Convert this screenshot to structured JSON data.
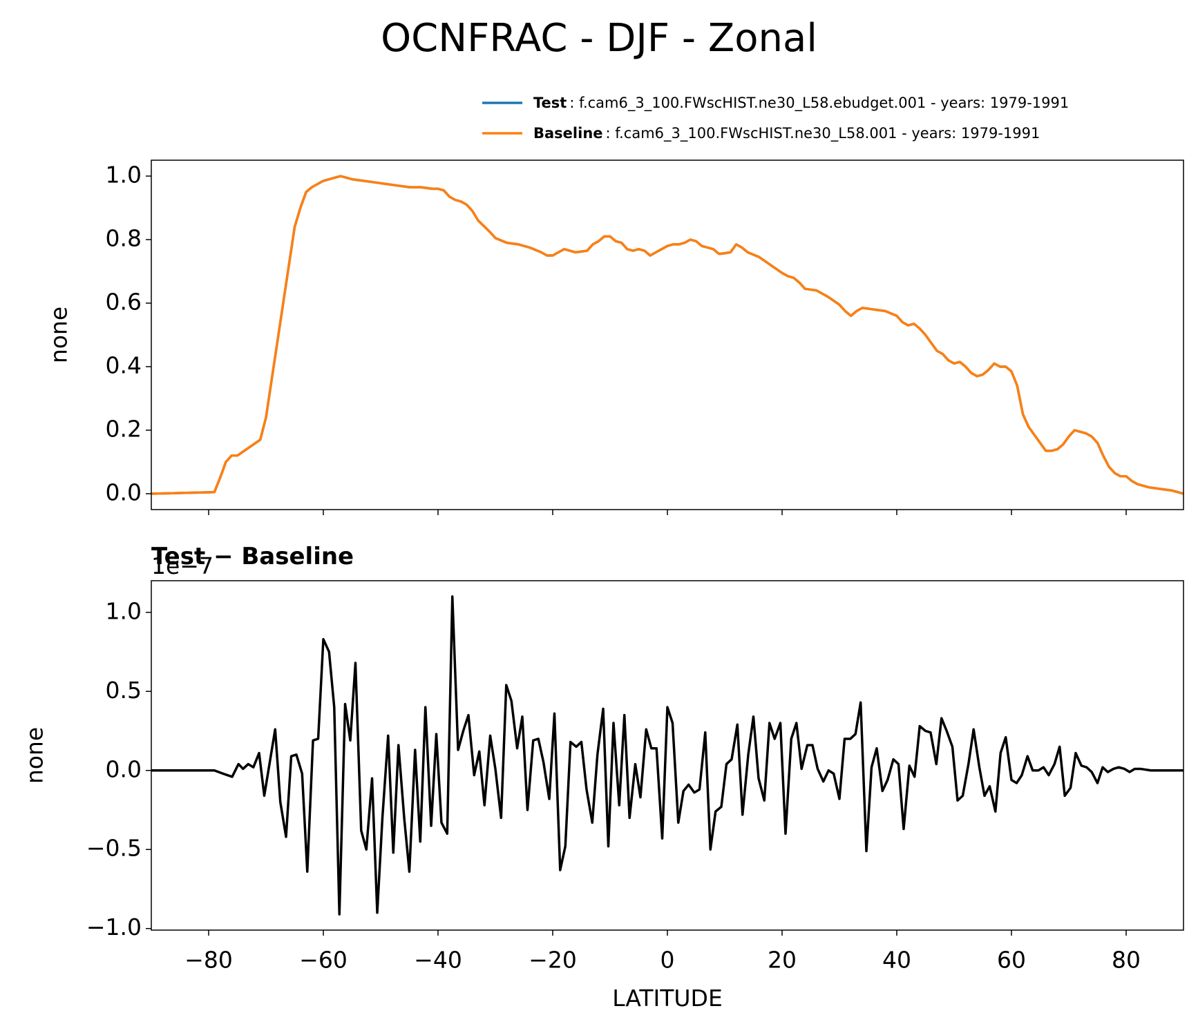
{
  "title": "OCNFRAC - DJF - Zonal",
  "chart_data": [
    {
      "type": "line",
      "ylabel": "none",
      "legend": "upper right",
      "grid": false,
      "show_xtick_labels": false,
      "xlim": [
        -90,
        90
      ],
      "ylim": [
        -0.05,
        1.05
      ],
      "xticks": [
        {
          "value": -80,
          "label": "−80"
        },
        {
          "value": -60,
          "label": "−60"
        },
        {
          "value": -40,
          "label": "−40"
        },
        {
          "value": -20,
          "label": "−20"
        },
        0,
        20,
        40,
        60,
        80
      ],
      "yticks": [
        {
          "value": 0,
          "label": "0.0"
        },
        0.2,
        0.4,
        0.6,
        0.8,
        {
          "value": 1,
          "label": "1.0"
        }
      ],
      "x": [
        -90,
        -79,
        -78,
        -77,
        -76,
        -75,
        -73,
        -71,
        -70,
        -69,
        -68,
        -67,
        -66,
        -65,
        -64,
        -63,
        -62,
        -60,
        -58,
        -57,
        -55,
        -53,
        -51,
        -49,
        -47,
        -45,
        -43,
        -41,
        -40,
        -39,
        -38,
        -37,
        -36,
        -35,
        -34,
        -33,
        -31,
        -30,
        -28,
        -26,
        -24,
        -22,
        -21,
        -20,
        -19,
        -18,
        -16,
        -14,
        -13,
        -12,
        -11,
        -10,
        -9,
        -8,
        -7,
        -6,
        -5,
        -4,
        -3,
        -2,
        -1,
        0,
        1,
        2,
        3,
        4,
        5,
        6,
        7,
        8,
        9,
        10,
        11,
        12,
        13,
        14,
        16,
        18,
        20,
        21,
        22,
        23,
        24,
        26,
        28,
        30,
        31,
        32,
        33,
        34,
        36,
        38,
        40,
        41,
        42,
        43,
        44,
        45,
        46,
        47,
        48,
        49,
        50,
        51,
        52,
        53,
        54,
        55,
        56,
        57,
        58,
        59,
        60,
        61,
        62,
        63,
        64,
        65,
        66,
        67,
        68,
        69,
        70,
        71,
        72,
        73,
        74,
        75,
        76,
        77,
        78,
        79,
        80,
        81,
        82,
        84,
        86,
        88,
        90
      ],
      "series": [
        {
          "name": "Test",
          "description": ": f.cam6_3_100.FWscHIST.ne30_L58.ebudget.001 - years: 1979-1991",
          "color": "#1f77b4",
          "values": [
            0,
            0.005,
            0.05,
            0.1,
            0.12,
            0.12,
            0.145,
            0.17,
            0.24,
            0.36,
            0.48,
            0.6,
            0.72,
            0.84,
            0.9,
            0.95,
            0.965,
            0.985,
            0.995,
            1.0,
            0.99,
            0.985,
            0.98,
            0.975,
            0.97,
            0.965,
            0.965,
            0.96,
            0.96,
            0.955,
            0.935,
            0.925,
            0.92,
            0.91,
            0.89,
            0.86,
            0.825,
            0.805,
            0.79,
            0.785,
            0.775,
            0.76,
            0.75,
            0.75,
            0.76,
            0.77,
            0.76,
            0.765,
            0.785,
            0.795,
            0.81,
            0.81,
            0.795,
            0.79,
            0.77,
            0.765,
            0.77,
            0.765,
            0.75,
            0.76,
            0.77,
            0.78,
            0.785,
            0.785,
            0.79,
            0.8,
            0.795,
            0.78,
            0.775,
            0.77,
            0.755,
            0.757,
            0.76,
            0.785,
            0.775,
            0.76,
            0.745,
            0.72,
            0.695,
            0.685,
            0.68,
            0.665,
            0.645,
            0.64,
            0.62,
            0.595,
            0.575,
            0.56,
            0.575,
            0.585,
            0.58,
            0.575,
            0.56,
            0.54,
            0.53,
            0.535,
            0.52,
            0.5,
            0.475,
            0.45,
            0.44,
            0.42,
            0.41,
            0.415,
            0.4,
            0.38,
            0.37,
            0.375,
            0.39,
            0.41,
            0.4,
            0.4,
            0.385,
            0.34,
            0.25,
            0.21,
            0.185,
            0.16,
            0.135,
            0.135,
            0.14,
            0.155,
            0.18,
            0.2,
            0.195,
            0.19,
            0.18,
            0.16,
            0.12,
            0.085,
            0.065,
            0.055,
            0.055,
            0.04,
            0.03,
            0.02,
            0.015,
            0.01,
            0.0
          ]
        },
        {
          "name": "Baseline",
          "description": ": f.cam6_3_100.FWscHIST.ne30_L58.001 - years: 1979-1991",
          "color": "#ff7f0e",
          "values": [
            0,
            0.005,
            0.05,
            0.1,
            0.12,
            0.12,
            0.145,
            0.17,
            0.24,
            0.36,
            0.48,
            0.6,
            0.72,
            0.84,
            0.9,
            0.95,
            0.965,
            0.985,
            0.995,
            1.0,
            0.99,
            0.985,
            0.98,
            0.975,
            0.97,
            0.965,
            0.965,
            0.96,
            0.96,
            0.955,
            0.935,
            0.925,
            0.92,
            0.91,
            0.89,
            0.86,
            0.825,
            0.805,
            0.79,
            0.785,
            0.775,
            0.76,
            0.75,
            0.75,
            0.76,
            0.77,
            0.76,
            0.765,
            0.785,
            0.795,
            0.81,
            0.81,
            0.795,
            0.79,
            0.77,
            0.765,
            0.77,
            0.765,
            0.75,
            0.76,
            0.77,
            0.78,
            0.785,
            0.785,
            0.79,
            0.8,
            0.795,
            0.78,
            0.775,
            0.77,
            0.755,
            0.757,
            0.76,
            0.785,
            0.775,
            0.76,
            0.745,
            0.72,
            0.695,
            0.685,
            0.68,
            0.665,
            0.645,
            0.64,
            0.62,
            0.595,
            0.575,
            0.56,
            0.575,
            0.585,
            0.58,
            0.575,
            0.56,
            0.54,
            0.53,
            0.535,
            0.52,
            0.5,
            0.475,
            0.45,
            0.44,
            0.42,
            0.41,
            0.415,
            0.4,
            0.38,
            0.37,
            0.375,
            0.39,
            0.41,
            0.4,
            0.4,
            0.385,
            0.34,
            0.25,
            0.21,
            0.185,
            0.16,
            0.135,
            0.135,
            0.14,
            0.155,
            0.18,
            0.2,
            0.195,
            0.19,
            0.18,
            0.16,
            0.12,
            0.085,
            0.065,
            0.055,
            0.055,
            0.04,
            0.03,
            0.02,
            0.015,
            0.01,
            0.0
          ]
        }
      ]
    },
    {
      "type": "line",
      "title": "Test − Baseline",
      "offset_text": "1e−7",
      "ylabel": "none",
      "xlabel": "LATITUDE",
      "grid": false,
      "show_xtick_labels": true,
      "xlim": [
        -90,
        90
      ],
      "ylim": [
        -1.01,
        1.2
      ],
      "xticks": [
        {
          "value": -80,
          "label": "−80"
        },
        {
          "value": -60,
          "label": "−60"
        },
        {
          "value": -40,
          "label": "−40"
        },
        {
          "value": -20,
          "label": "−20"
        },
        0,
        20,
        40,
        60,
        80
      ],
      "yticks": [
        {
          "value": -1,
          "label": "−1.0"
        },
        {
          "value": -0.5,
          "label": "−0.5"
        },
        {
          "value": 0,
          "label": "0.0"
        },
        0.5,
        {
          "value": 1,
          "label": "1.0"
        }
      ],
      "x": [
        -90,
        -79,
        -77.5,
        -75.9,
        -74.8,
        -74,
        -73.1,
        -72.2,
        -71.2,
        -70.3,
        -68.4,
        -67.5,
        -66.5,
        -65.6,
        -64.7,
        -63.7,
        -62.8,
        -61.8,
        -60.9,
        -60,
        -59,
        -58.1,
        -57.2,
        -56.2,
        -55.3,
        -54.4,
        -53.4,
        -52.5,
        -51.5,
        -50.6,
        -49.7,
        -48.7,
        -47.8,
        -46.9,
        -45.9,
        -45,
        -44,
        -43.1,
        -42.2,
        -41.2,
        -40.3,
        -39.4,
        -38.4,
        -37.5,
        -36.5,
        -35.6,
        -34.7,
        -33.7,
        -32.8,
        -31.9,
        -30.9,
        -30,
        -29,
        -28.1,
        -27.2,
        -26.2,
        -25.3,
        -24.4,
        -23.4,
        -22.5,
        -21.6,
        -20.6,
        -19.7,
        -18.7,
        -17.8,
        -16.9,
        -15.9,
        -15,
        -14.1,
        -13.1,
        -12.2,
        -11.2,
        -10.3,
        -9.4,
        -8.4,
        -7.5,
        -6.6,
        -5.6,
        -4.7,
        -3.7,
        -2.8,
        -1.9,
        -0.9,
        0,
        0.9,
        1.9,
        2.8,
        3.7,
        4.7,
        5.6,
        6.6,
        7.5,
        8.4,
        9.4,
        10.3,
        11.2,
        12.2,
        13.1,
        14.1,
        15,
        15.9,
        16.9,
        17.8,
        18.7,
        19.7,
        20.6,
        21.6,
        22.5,
        23.4,
        24.4,
        25.3,
        26.2,
        27.2,
        28.1,
        29,
        30,
        30.9,
        31.9,
        32.8,
        33.7,
        34.7,
        35.6,
        36.5,
        37.5,
        38.4,
        39.4,
        40.3,
        41.2,
        42.2,
        43.1,
        44,
        45,
        45.9,
        46.9,
        47.8,
        48.7,
        49.7,
        50.6,
        51.5,
        52.5,
        53.4,
        54.4,
        55.3,
        56.2,
        57.2,
        58.1,
        59,
        60,
        60.9,
        61.8,
        62.8,
        63.7,
        64.7,
        65.6,
        66.5,
        67.5,
        68.4,
        69.3,
        70.3,
        71.2,
        72.2,
        73.1,
        74,
        75,
        75.9,
        76.8,
        77.8,
        78.7,
        79.7,
        80.6,
        81.5,
        82.5,
        84.3,
        86.2,
        90
      ],
      "series": [
        {
          "color": "#000000",
          "values": [
            0,
            0,
            -0.02,
            -0.04,
            0.04,
            0.01,
            0.04,
            0.02,
            0.11,
            -0.16,
            0.26,
            -0.2,
            -0.42,
            0.09,
            0.1,
            -0.02,
            -0.64,
            0.19,
            0.2,
            0.83,
            0.75,
            0.4,
            -0.91,
            0.42,
            0.19,
            0.68,
            -0.38,
            -0.5,
            -0.05,
            -0.9,
            -0.3,
            0.22,
            -0.52,
            0.16,
            -0.3,
            -0.64,
            0.13,
            -0.45,
            0.4,
            -0.35,
            0.23,
            -0.33,
            -0.4,
            1.1,
            0.13,
            0.25,
            0.35,
            -0.03,
            0.12,
            -0.22,
            0.22,
            0.01,
            -0.3,
            0.54,
            0.44,
            0.14,
            0.34,
            -0.25,
            0.19,
            0.2,
            0.05,
            -0.18,
            0.36,
            -0.63,
            -0.48,
            0.18,
            0.15,
            0.18,
            -0.12,
            -0.33,
            0.1,
            0.39,
            -0.48,
            0.3,
            -0.22,
            0.35,
            -0.3,
            0.04,
            -0.17,
            0.26,
            0.14,
            0.14,
            -0.43,
            0.4,
            0.3,
            -0.33,
            -0.13,
            -0.09,
            -0.14,
            -0.12,
            0.24,
            -0.5,
            -0.26,
            -0.23,
            0.04,
            0.07,
            0.29,
            -0.28,
            0.1,
            0.34,
            -0.05,
            -0.19,
            0.3,
            0.2,
            0.3,
            -0.4,
            0.2,
            0.3,
            0.01,
            0.16,
            0.16,
            0.01,
            -0.07,
            0,
            -0.02,
            -0.18,
            0.2,
            0.2,
            0.23,
            0.43,
            -0.51,
            0.02,
            0.14,
            -0.13,
            -0.06,
            0.07,
            0.04,
            -0.37,
            0.03,
            -0.04,
            0.28,
            0.25,
            0.24,
            0.04,
            0.33,
            0.25,
            0.15,
            -0.19,
            -0.16,
            0.04,
            0.26,
            0.02,
            -0.16,
            -0.1,
            -0.26,
            0.11,
            0.21,
            -0.06,
            -0.08,
            -0.03,
            0.09,
            0,
            0,
            0.02,
            -0.03,
            0.04,
            0.15,
            -0.16,
            -0.11,
            0.11,
            0.03,
            0.02,
            -0.01,
            -0.08,
            0.02,
            -0.01,
            0.01,
            0.02,
            0.01,
            -0.01,
            0.01,
            0.01,
            0,
            0,
            0
          ]
        }
      ]
    }
  ]
}
